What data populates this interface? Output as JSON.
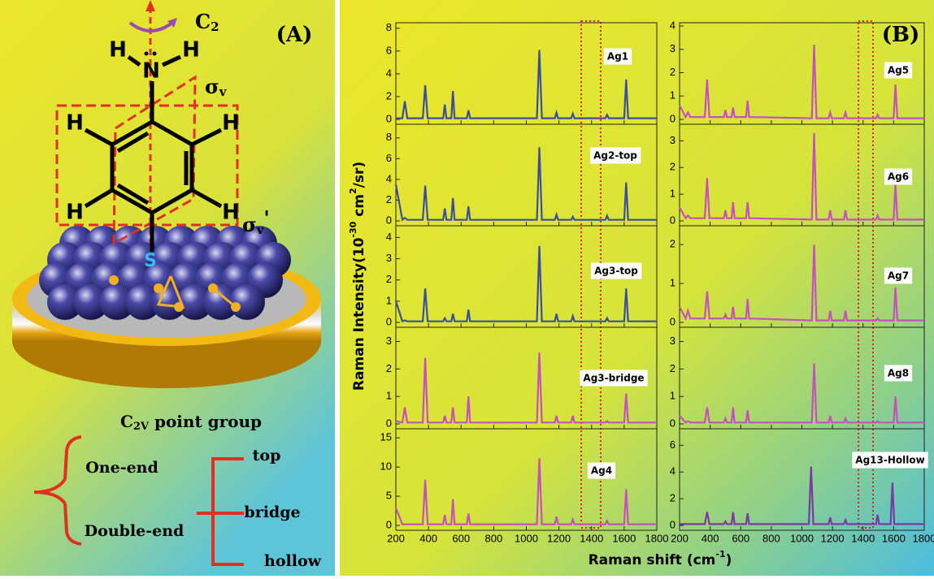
{
  "panel_a": {
    "label": "(A)",
    "c2": {
      "base": "C",
      "sub": "2"
    },
    "n": "N",
    "h_top": [
      "H",
      "H"
    ],
    "sigma_v": {
      "base": "σ",
      "sub": "v"
    },
    "sigma_v_prime": {
      "base": "σ",
      "sub": "v",
      "prime": "'"
    },
    "ring_h": [
      "H",
      "H",
      "H",
      "H"
    ],
    "s": "S",
    "point_group": {
      "base": "C",
      "sub": "2V",
      "rest": " point group"
    },
    "one_end": "One-end",
    "double_end": "Double-end",
    "sites": [
      "top",
      "bridge",
      "hollow"
    ]
  },
  "panel_b": {
    "label": "(B)",
    "y_label": [
      "Raman Intensity(10",
      "-30",
      " cm",
      "2",
      "/sr)"
    ],
    "x_label": [
      "Raman shift (cm",
      "-1",
      ")"
    ]
  },
  "chart_data": [
    {
      "type": "line",
      "title": "Ag1",
      "color": "#3b4ea0",
      "xlim": [
        200,
        1800
      ],
      "xticks": [
        200,
        400,
        600,
        800,
        1000,
        1200,
        1400,
        1600,
        1800
      ],
      "ylim": [
        0,
        8.2
      ],
      "yticks": [
        0,
        2,
        4,
        6,
        8
      ],
      "x": [
        200,
        240,
        255,
        270,
        365,
        380,
        395,
        490,
        500,
        510,
        540,
        550,
        560,
        635,
        645,
        655,
        1065,
        1080,
        1095,
        1175,
        1185,
        1195,
        1275,
        1285,
        1295,
        1485,
        1495,
        1505,
        1600,
        1612,
        1624,
        1800
      ],
      "values": [
        0.1,
        0.1,
        1.6,
        0.1,
        0.1,
        3.0,
        0.1,
        0.1,
        1.3,
        0.1,
        0.1,
        2.5,
        0.1,
        0.1,
        0.8,
        0.1,
        0.1,
        6.1,
        0.1,
        0.1,
        0.6,
        0.1,
        0.1,
        0.5,
        0.1,
        0.1,
        0.4,
        0.1,
        0.1,
        3.5,
        0.1,
        0.1
      ]
    },
    {
      "type": "line",
      "title": "Ag2-top",
      "color": "#3b4ea0",
      "xlim": [
        200,
        1800
      ],
      "xticks": [
        200,
        400,
        600,
        800,
        1000,
        1200,
        1400,
        1600,
        1800
      ],
      "ylim": [
        0,
        9
      ],
      "yticks": [
        0,
        2,
        4,
        6,
        8
      ],
      "x": [
        200,
        240,
        255,
        270,
        365,
        380,
        395,
        490,
        500,
        510,
        540,
        550,
        560,
        635,
        645,
        655,
        1065,
        1080,
        1095,
        1175,
        1185,
        1195,
        1275,
        1285,
        1295,
        1485,
        1495,
        1505,
        1600,
        1612,
        1624,
        1800
      ],
      "values": [
        3.5,
        0.1,
        0.3,
        0.1,
        0.1,
        3.4,
        0.1,
        0.1,
        1.2,
        0.1,
        0.1,
        2.2,
        0.1,
        0.1,
        1.4,
        0.1,
        0.1,
        7.1,
        0.1,
        0.1,
        0.6,
        0.1,
        0.1,
        0.4,
        0.1,
        0.1,
        0.5,
        0.1,
        0.1,
        3.7,
        0.1,
        0.1
      ]
    },
    {
      "type": "line",
      "title": "Ag3-top",
      "color": "#3b4ea0",
      "xlim": [
        200,
        1800
      ],
      "xticks": [
        200,
        400,
        600,
        800,
        1000,
        1200,
        1400,
        1600,
        1800
      ],
      "ylim": [
        0,
        4.4
      ],
      "yticks": [
        0,
        1,
        2,
        3,
        4
      ],
      "x": [
        200,
        240,
        255,
        270,
        365,
        380,
        395,
        490,
        500,
        510,
        540,
        550,
        560,
        635,
        645,
        655,
        1065,
        1080,
        1095,
        1175,
        1185,
        1195,
        1275,
        1285,
        1295,
        1485,
        1495,
        1505,
        1600,
        1612,
        1624,
        1800
      ],
      "values": [
        1.0,
        0.05,
        0.1,
        0.05,
        0.05,
        1.6,
        0.05,
        0.05,
        0.2,
        0.05,
        0.05,
        0.4,
        0.05,
        0.05,
        0.6,
        0.05,
        0.05,
        3.6,
        0.05,
        0.05,
        0.4,
        0.05,
        0.05,
        0.3,
        0.05,
        0.05,
        0.2,
        0.05,
        0.05,
        1.6,
        0.05,
        0.05
      ]
    },
    {
      "type": "line",
      "title": "Ag3-bridge",
      "color": "#c84fbf",
      "xlim": [
        200,
        1800
      ],
      "xticks": [
        200,
        400,
        600,
        800,
        1000,
        1200,
        1400,
        1600,
        1800
      ],
      "ylim": [
        0,
        3.4
      ],
      "yticks": [
        0,
        1,
        2,
        3
      ],
      "x": [
        200,
        240,
        255,
        270,
        365,
        380,
        395,
        490,
        500,
        510,
        540,
        550,
        560,
        635,
        645,
        655,
        1065,
        1080,
        1095,
        1175,
        1185,
        1195,
        1275,
        1285,
        1295,
        1485,
        1495,
        1505,
        1600,
        1612,
        1624,
        1800
      ],
      "values": [
        0.1,
        0.05,
        0.6,
        0.05,
        0.05,
        2.4,
        0.05,
        0.05,
        0.3,
        0.05,
        0.05,
        0.6,
        0.05,
        0.05,
        1.0,
        0.05,
        0.05,
        2.6,
        0.05,
        0.05,
        0.3,
        0.05,
        0.05,
        0.3,
        0.05,
        0.05,
        0.1,
        0.05,
        0.05,
        1.1,
        0.05,
        0.05
      ]
    },
    {
      "type": "line",
      "title": "Ag4",
      "color": "#c84fbf",
      "xlim": [
        200,
        1800
      ],
      "xticks": [
        200,
        400,
        600,
        800,
        1000,
        1200,
        1400,
        1600,
        1800
      ],
      "ylim": [
        0,
        16
      ],
      "yticks": [
        0,
        5,
        10,
        15
      ],
      "x": [
        200,
        240,
        255,
        270,
        365,
        380,
        395,
        490,
        500,
        510,
        540,
        550,
        560,
        635,
        645,
        655,
        1065,
        1080,
        1095,
        1175,
        1185,
        1195,
        1275,
        1285,
        1295,
        1485,
        1495,
        1505,
        1600,
        1612,
        1624,
        1800
      ],
      "values": [
        3.0,
        0.2,
        0.2,
        0.2,
        0.2,
        7.8,
        0.2,
        0.2,
        1.8,
        0.2,
        0.2,
        4.5,
        0.2,
        0.2,
        2.0,
        0.2,
        0.2,
        11.5,
        0.2,
        0.2,
        1.5,
        0.2,
        0.2,
        1.0,
        0.2,
        0.2,
        0.8,
        0.2,
        0.2,
        6.2,
        0.2,
        0.2
      ]
    },
    {
      "type": "line",
      "title": "Ag5",
      "color": "#c84fbf",
      "xlim": [
        200,
        1800
      ],
      "xticks": [
        200,
        400,
        600,
        800,
        1000,
        1200,
        1400,
        1600,
        1800
      ],
      "ylim": [
        0,
        4
      ],
      "yticks": [
        0,
        1,
        2,
        3,
        4
      ],
      "x": [
        200,
        240,
        255,
        270,
        365,
        380,
        395,
        490,
        500,
        510,
        540,
        550,
        560,
        635,
        645,
        655,
        1065,
        1080,
        1095,
        1175,
        1185,
        1195,
        1275,
        1285,
        1295,
        1485,
        1495,
        1505,
        1600,
        1612,
        1624,
        1800
      ],
      "values": [
        0.6,
        0.1,
        0.3,
        0.1,
        0.1,
        1.7,
        0.1,
        0.1,
        0.4,
        0.1,
        0.1,
        0.5,
        0.1,
        0.1,
        0.8,
        0.1,
        0.05,
        3.2,
        0.05,
        0.05,
        0.3,
        0.05,
        0.05,
        0.3,
        0.05,
        0.05,
        0.2,
        0.05,
        0.05,
        1.5,
        0.05,
        0.05
      ]
    },
    {
      "type": "line",
      "title": "Ag6",
      "color": "#c84fbf",
      "xlim": [
        200,
        1800
      ],
      "xticks": [
        200,
        400,
        600,
        800,
        1000,
        1200,
        1400,
        1600,
        1800
      ],
      "ylim": [
        0,
        3.5
      ],
      "yticks": [
        0,
        1,
        2,
        3
      ],
      "x": [
        200,
        240,
        255,
        270,
        365,
        380,
        395,
        490,
        500,
        510,
        540,
        550,
        560,
        635,
        645,
        655,
        1065,
        1080,
        1095,
        1175,
        1185,
        1195,
        1275,
        1285,
        1295,
        1485,
        1495,
        1505,
        1600,
        1612,
        1624,
        1800
      ],
      "values": [
        0.5,
        0.1,
        0.2,
        0.1,
        0.1,
        1.6,
        0.1,
        0.1,
        0.4,
        0.1,
        0.1,
        0.7,
        0.1,
        0.1,
        0.7,
        0.1,
        0.05,
        3.3,
        0.05,
        0.05,
        0.4,
        0.05,
        0.05,
        0.4,
        0.05,
        0.05,
        0.2,
        0.05,
        0.05,
        1.4,
        0.05,
        0.05
      ]
    },
    {
      "type": "line",
      "title": "Ag7",
      "color": "#c84fbf",
      "xlim": [
        200,
        1800
      ],
      "xticks": [
        200,
        400,
        600,
        800,
        1000,
        1200,
        1400,
        1600,
        1800
      ],
      "ylim": [
        0,
        2.4
      ],
      "yticks": [
        0,
        1,
        2
      ],
      "x": [
        200,
        240,
        255,
        270,
        365,
        380,
        395,
        490,
        500,
        510,
        540,
        550,
        560,
        635,
        645,
        655,
        1065,
        1080,
        1095,
        1175,
        1185,
        1195,
        1275,
        1285,
        1295,
        1485,
        1495,
        1505,
        1600,
        1612,
        1624,
        1800
      ],
      "values": [
        0.4,
        0.1,
        0.3,
        0.1,
        0.1,
        0.8,
        0.1,
        0.1,
        0.2,
        0.1,
        0.1,
        0.4,
        0.1,
        0.1,
        0.6,
        0.1,
        0.05,
        2.0,
        0.05,
        0.05,
        0.3,
        0.05,
        0.05,
        0.3,
        0.05,
        0.05,
        0.1,
        0.05,
        0.05,
        0.9,
        0.05,
        0.05
      ]
    },
    {
      "type": "line",
      "title": "Ag8",
      "color": "#c84fbf",
      "xlim": [
        200,
        1800
      ],
      "xticks": [
        200,
        400,
        600,
        800,
        1000,
        1200,
        1400,
        1600,
        1800
      ],
      "ylim": [
        0,
        3.4
      ],
      "yticks": [
        0,
        1,
        2,
        3
      ],
      "x": [
        200,
        240,
        255,
        270,
        365,
        380,
        395,
        490,
        500,
        510,
        540,
        550,
        560,
        635,
        645,
        655,
        1065,
        1080,
        1095,
        1175,
        1185,
        1195,
        1275,
        1285,
        1295,
        1485,
        1495,
        1505,
        1600,
        1612,
        1624,
        1800
      ],
      "values": [
        0.3,
        0.05,
        0.1,
        0.05,
        0.05,
        0.6,
        0.05,
        0.05,
        0.2,
        0.05,
        0.05,
        0.6,
        0.05,
        0.05,
        0.5,
        0.05,
        0.05,
        2.2,
        0.05,
        0.05,
        0.3,
        0.05,
        0.05,
        0.2,
        0.05,
        0.05,
        0.1,
        0.05,
        0.05,
        1.0,
        0.05,
        0.05
      ]
    },
    {
      "type": "line",
      "title": "Ag13-Hollow",
      "color": "#7a3aa0",
      "xlim": [
        200,
        1800
      ],
      "xticks": [
        200,
        400,
        600,
        800,
        1000,
        1200,
        1400,
        1600,
        1800
      ],
      "ylim": [
        0,
        7
      ],
      "yticks": [
        0,
        2,
        4,
        6
      ],
      "x": [
        200,
        240,
        255,
        270,
        365,
        380,
        395,
        490,
        500,
        510,
        540,
        550,
        560,
        635,
        645,
        655,
        1045,
        1060,
        1075,
        1175,
        1185,
        1195,
        1275,
        1285,
        1295,
        1485,
        1495,
        1505,
        1580,
        1592,
        1604,
        1800
      ],
      "values": [
        0.1,
        0.1,
        0.1,
        0.1,
        0.1,
        1.0,
        0.1,
        0.1,
        0.3,
        0.1,
        0.1,
        1.0,
        0.1,
        0.1,
        0.9,
        0.1,
        0.1,
        4.4,
        0.1,
        0.1,
        0.6,
        0.1,
        0.1,
        0.4,
        0.1,
        0.1,
        0.8,
        0.1,
        0.1,
        3.2,
        0.1,
        0.1
      ]
    }
  ]
}
